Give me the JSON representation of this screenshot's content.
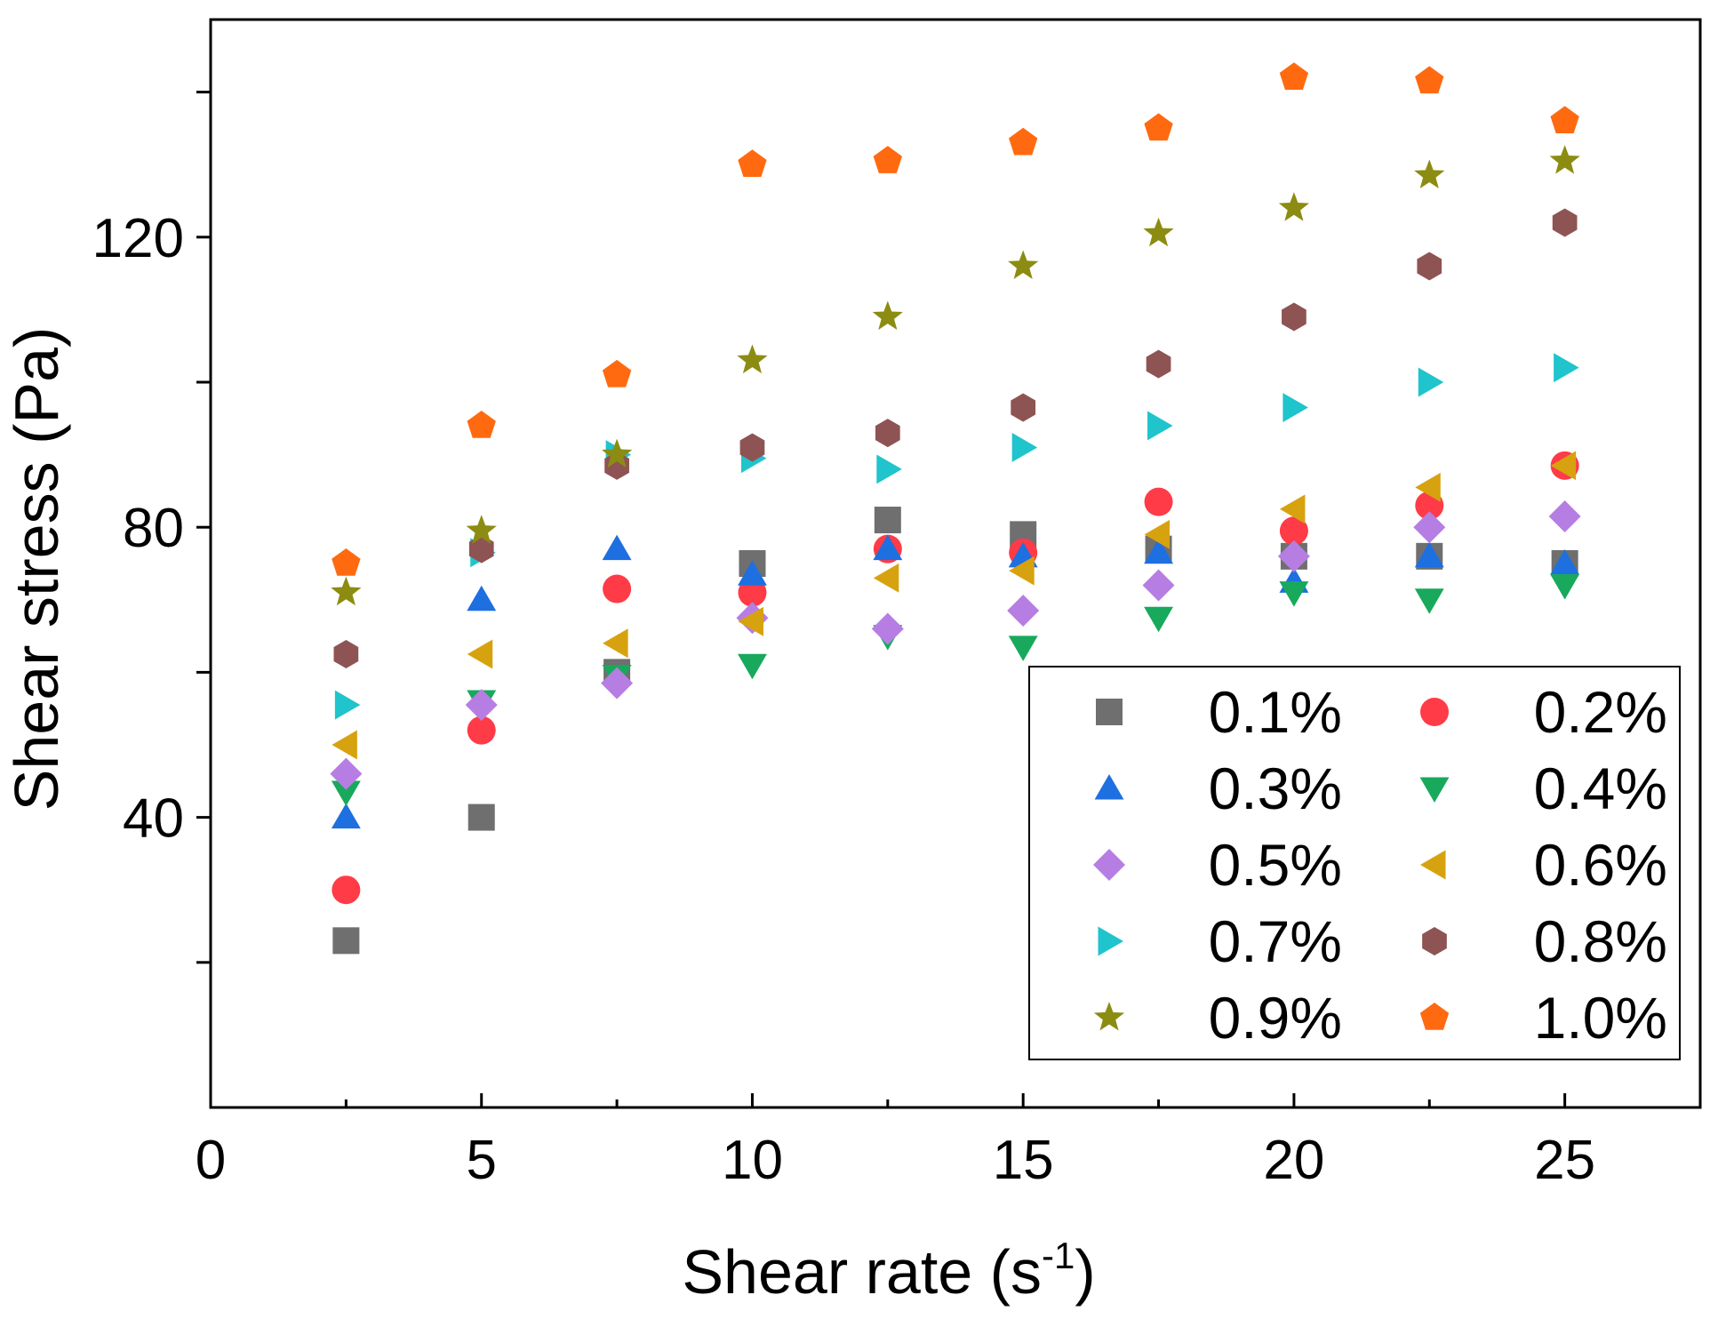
{
  "chart_data": {
    "type": "scatter",
    "title": "",
    "xlabel": "Shear rate (s",
    "xlabel_superscript": "-1",
    "xlabel_suffix": ")",
    "ylabel": "Shear stress (Pa)",
    "xlim": [
      0,
      27.5
    ],
    "ylim": [
      0,
      150
    ],
    "x_ticks": [
      0,
      5,
      10,
      15,
      20,
      25
    ],
    "x_tick_labels": [
      "0",
      "5",
      "10",
      "15",
      "20",
      "25"
    ],
    "y_ticks": [
      20,
      40,
      60,
      80,
      100,
      120,
      140
    ],
    "y_tick_labels": {
      "40": "40",
      "80": "80",
      "120": "120"
    },
    "grid": false,
    "legend_position": "bottom-right",
    "x": [
      2.5,
      5,
      7.5,
      10,
      12.5,
      15,
      17.5,
      20,
      22.5,
      25
    ],
    "series": [
      {
        "name": "0.1%",
        "marker": "square",
        "color": "#6f6f6f",
        "values": [
          23,
          40,
          60,
          75,
          81,
          79,
          77,
          76,
          76,
          75
        ]
      },
      {
        "name": "0.2%",
        "marker": "circle",
        "color": "#ff3b47",
        "values": [
          30,
          52,
          71.5,
          71,
          77,
          76.5,
          83.5,
          79.5,
          83,
          88.5
        ]
      },
      {
        "name": "0.3%",
        "marker": "triangle-up",
        "color": "#1e6fe0",
        "values": [
          40,
          70,
          77,
          73.5,
          77,
          76,
          76.5,
          72.5,
          76,
          75
        ]
      },
      {
        "name": "0.4%",
        "marker": "triangle-down",
        "color": "#18a95c",
        "values": [
          43.5,
          56,
          59.5,
          61,
          65,
          63.5,
          67.5,
          71,
          70,
          72
        ]
      },
      {
        "name": "0.5%",
        "marker": "diamond",
        "color": "#b67ee3",
        "values": [
          46,
          55.5,
          58.5,
          67.5,
          66,
          68.5,
          72,
          76,
          80,
          81.5
        ]
      },
      {
        "name": "0.6%",
        "marker": "triangle-left",
        "color": "#d7a20f",
        "values": [
          50,
          62.5,
          64,
          67,
          73,
          74,
          79,
          82.5,
          85.5,
          88.5
        ]
      },
      {
        "name": "0.7%",
        "marker": "triangle-right",
        "color": "#1fc4cc",
        "values": [
          55.5,
          76.5,
          90,
          89.5,
          88,
          91,
          94,
          96.5,
          100,
          102
        ]
      },
      {
        "name": "0.8%",
        "marker": "hexagon",
        "color": "#8e5453",
        "values": [
          62.5,
          77,
          88.5,
          91,
          93,
          96.5,
          102.5,
          109,
          116,
          122
        ]
      },
      {
        "name": "0.9%",
        "marker": "star",
        "color": "#8c8c12",
        "values": [
          71,
          79.5,
          90,
          103,
          109,
          116,
          120.5,
          124,
          128.5,
          130.5
        ]
      },
      {
        "name": "1.0%",
        "marker": "pentagon",
        "color": "#ff6a10",
        "values": [
          75,
          94,
          101,
          130,
          130.5,
          133,
          135,
          142,
          141.5,
          136
        ]
      }
    ]
  }
}
